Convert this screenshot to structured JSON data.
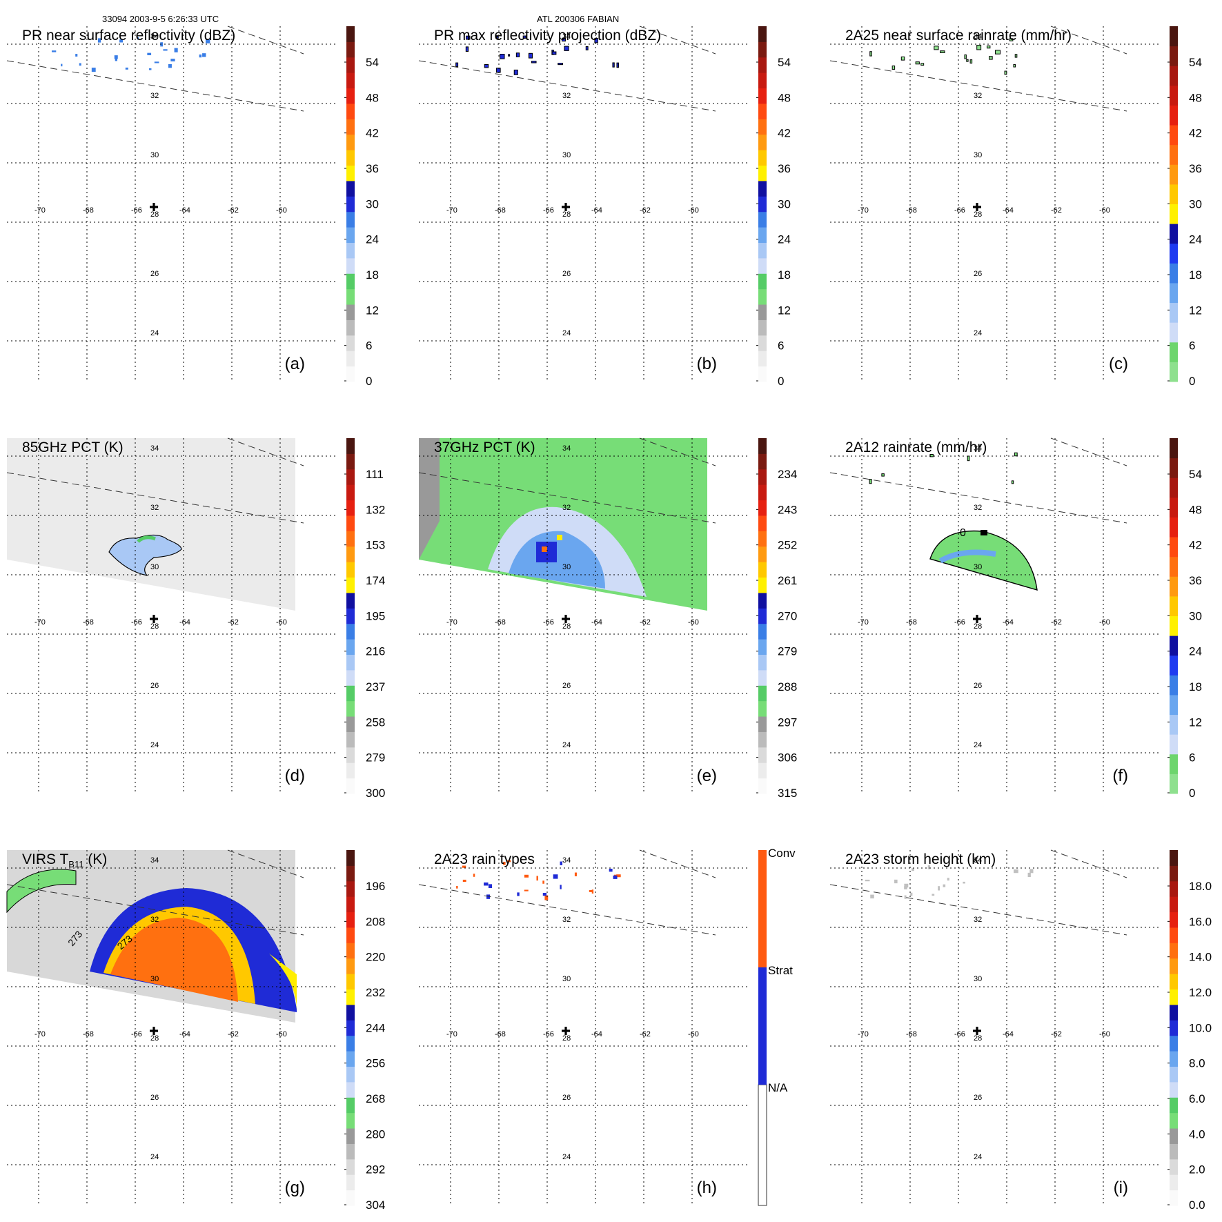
{
  "header": {
    "left": "33094 2003-9-5 6:26:33 UTC",
    "center": "ATL 200306 FABIAN"
  },
  "map": {
    "lon_labels": [
      "-70",
      "-68",
      "-66",
      "-64",
      "-62",
      "-60"
    ],
    "lat_labels": [
      "34",
      "32",
      "30",
      "28",
      "26",
      "24"
    ],
    "storm_center_marker": "plus-icon"
  },
  "panels": [
    {
      "id": "a",
      "title": "PR near surface reflectivity (dBZ)",
      "letter": "(a)",
      "colorbar_type": "reflectivity",
      "colorbar_ticks": [
        "54",
        "48",
        "42",
        "36",
        "30",
        "24",
        "18",
        "12",
        "6",
        "0"
      ]
    },
    {
      "id": "b",
      "title": "PR max reflectivity projection (dBZ)",
      "letter": "(b)",
      "colorbar_type": "reflectivity",
      "colorbar_ticks": [
        "54",
        "48",
        "42",
        "36",
        "30",
        "24",
        "18",
        "12",
        "6",
        "0"
      ]
    },
    {
      "id": "c",
      "title": "2A25 near surface rainrate (mm/hr)",
      "letter": "(c)",
      "colorbar_type": "rainrate",
      "colorbar_ticks": [
        "54",
        "48",
        "42",
        "36",
        "30",
        "24",
        "18",
        "12",
        "6",
        "0"
      ]
    },
    {
      "id": "d",
      "title": "85GHz PCT (K)",
      "letter": "(d)",
      "colorbar_type": "temperature",
      "colorbar_ticks": [
        "111",
        "132",
        "153",
        "174",
        "195",
        "216",
        "237",
        "258",
        "279",
        "300"
      ]
    },
    {
      "id": "e",
      "title": "37GHz PCT (K)",
      "letter": "(e)",
      "colorbar_type": "temperature",
      "colorbar_ticks": [
        "234",
        "243",
        "252",
        "261",
        "270",
        "279",
        "288",
        "297",
        "306",
        "315"
      ]
    },
    {
      "id": "f",
      "title": "2A12 rainrate (mm/hr)",
      "letter": "(f)",
      "colorbar_type": "rainrate",
      "colorbar_ticks": [
        "54",
        "48",
        "42",
        "36",
        "30",
        "24",
        "18",
        "12",
        "6",
        "0"
      ]
    },
    {
      "id": "g",
      "title": "VIRS T",
      "title_sub": "B11",
      "title_unit": " (K)",
      "letter": "(g)",
      "colorbar_type": "temperature",
      "colorbar_ticks": [
        "196",
        "208",
        "220",
        "232",
        "244",
        "256",
        "268",
        "280",
        "292",
        "304"
      ],
      "contour_labels": [
        "273",
        "273"
      ]
    },
    {
      "id": "h",
      "title": "2A23 rain types",
      "letter": "(h)",
      "colorbar_type": "category",
      "colorbar_ticks": [
        "Conv",
        "Strat",
        "N/A"
      ]
    },
    {
      "id": "i",
      "title": "2A23 storm height (km)",
      "letter": "(i)",
      "colorbar_type": "height",
      "colorbar_ticks": [
        "18.0",
        "16.0",
        "14.0",
        "12.0",
        "10.0",
        "8.0",
        "6.0",
        "4.0",
        "2.0",
        "0.0"
      ]
    }
  ],
  "f_contour_label": "0",
  "colors": {
    "bg": "#ffffff",
    "grid": "#000000",
    "green": "#77dd77",
    "lightblue": "#a9c8f5",
    "blue": "#1f2bd6",
    "yellow": "#ffee00",
    "orange": "#ff7a10",
    "red": "#e02010",
    "darkred": "#7a1a10",
    "gray": "#c8c8c8"
  }
}
